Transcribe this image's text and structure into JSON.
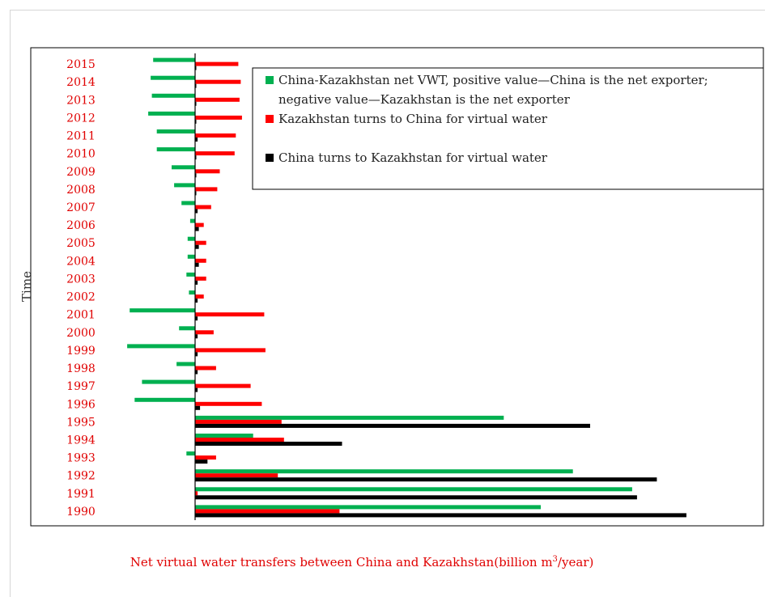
{
  "chart_data": {
    "type": "bar",
    "orientation": "horizontal",
    "ylabel": "Time",
    "caption_parts": [
      "Net virtual water transfers between China and Kazakhstan(billion m",
      "3",
      "/year)"
    ],
    "categories": [
      "1990",
      "1991",
      "1992",
      "1993",
      "1994",
      "1995",
      "1996",
      "1997",
      "1998",
      "1999",
      "2000",
      "2001",
      "2002",
      "2003",
      "2004",
      "2005",
      "2006",
      "2007",
      "2008",
      "2009",
      "2010",
      "2011",
      "2012",
      "2013",
      "2014",
      "2015"
    ],
    "series": [
      {
        "name": "China-Kazakhstan net VWT, positive value—China is the net exporter; negative value—Kazakhstan is the net exporter",
        "color": "#00b050",
        "values": [
          14.0,
          17.7,
          15.3,
          -0.35,
          2.35,
          12.5,
          -2.45,
          -2.15,
          -0.75,
          -2.75,
          -0.65,
          -2.65,
          -0.25,
          -0.35,
          -0.3,
          -0.3,
          -0.2,
          -0.55,
          -0.85,
          -0.95,
          -1.55,
          -1.55,
          -1.9,
          -1.75,
          -1.8,
          -1.7
        ]
      },
      {
        "name": "Kazakhstan turns to China for virtual water",
        "color": "#ff0000",
        "values": [
          5.85,
          0.1,
          3.35,
          0.85,
          3.6,
          3.5,
          2.7,
          2.25,
          0.85,
          2.85,
          0.75,
          2.8,
          0.35,
          0.45,
          0.45,
          0.45,
          0.35,
          0.65,
          0.9,
          1.0,
          1.6,
          1.65,
          1.9,
          1.8,
          1.85,
          1.75
        ]
      },
      {
        "name": "China turns to Kazakhstan for virtual water",
        "color": "#000000",
        "values": [
          19.9,
          17.9,
          18.7,
          0.5,
          5.95,
          16.0,
          0.2,
          0.1,
          0.1,
          0.1,
          0.1,
          0.1,
          0.1,
          0.1,
          0.15,
          0.15,
          0.15,
          0.1,
          0.05,
          0.05,
          0.05,
          0.1,
          0.05,
          0.05,
          0.05,
          0.05
        ]
      }
    ],
    "xlim": [
      -6.7,
      23.0
    ],
    "colors": {
      "category_labels": "#e00000",
      "caption": "#e00000",
      "axis": "#000000"
    },
    "legend": {
      "position": "top-right"
    }
  }
}
